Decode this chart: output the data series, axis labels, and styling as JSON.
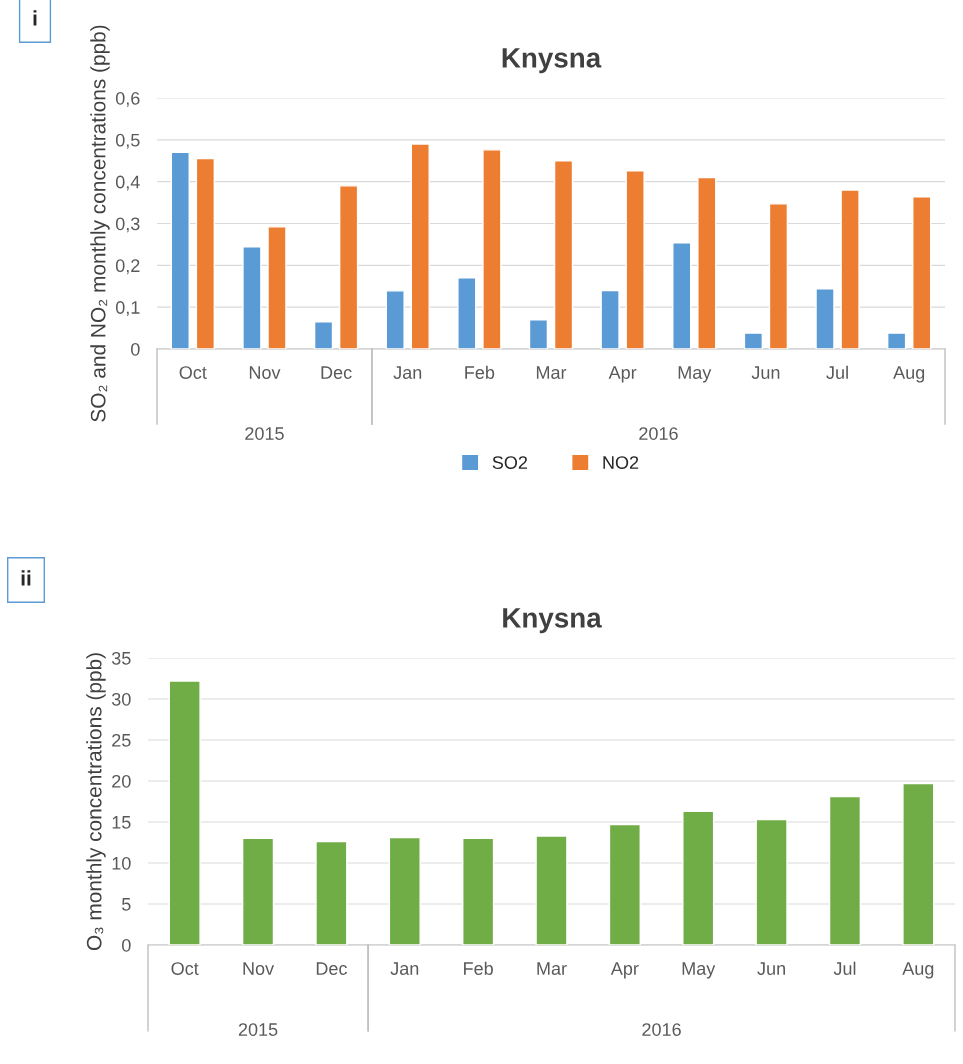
{
  "chart_data": [
    {
      "type": "bar",
      "title": "Knysna",
      "ylabel": "SO₂ and NO₂ monthly concentrations (ppb)",
      "categories": [
        "Oct",
        "Nov",
        "Dec",
        "Jan",
        "Feb",
        "Mar",
        "Apr",
        "May",
        "Jun",
        "Jul",
        "Aug"
      ],
      "series": [
        {
          "name": "SO2",
          "color": "#5b9bd5",
          "values": [
            0.47,
            0.244,
            0.065,
            0.139,
            0.17,
            0.07,
            0.14,
            0.254,
            0.038,
            0.144,
            0.038
          ]
        },
        {
          "name": "NO2",
          "color": "#ed7d31",
          "values": [
            0.455,
            0.292,
            0.39,
            0.49,
            0.476,
            0.45,
            0.426,
            0.41,
            0.347,
            0.38,
            0.364
          ]
        }
      ],
      "ylim": [
        0,
        0.6
      ],
      "yticks": [
        0,
        {
          "value": 0.1,
          "label": "0,1"
        },
        {
          "value": 0.2,
          "label": "0,2"
        },
        {
          "value": 0.3,
          "label": "0,3"
        },
        {
          "value": 0.4,
          "label": "0,4"
        },
        {
          "value": 0.5,
          "label": "0,5"
        },
        {
          "value": 0.6,
          "label": "0,6"
        }
      ],
      "grid": "y",
      "legend": "bottom",
      "annotations": [
        "i",
        "2015",
        "2016"
      ]
    },
    {
      "type": "bar",
      "title": "Knysna",
      "ylabel": "O₃ monthly concentrations (ppb)",
      "categories": [
        "Oct",
        "Nov",
        "Dec",
        "Jan",
        "Feb",
        "Mar",
        "Apr",
        "May",
        "Jun",
        "Jul",
        "Aug"
      ],
      "series": [
        {
          "color": "#70ad47",
          "values": [
            32.2,
            13.0,
            12.6,
            13.1,
            13.0,
            13.3,
            14.7,
            16.3,
            15.3,
            18.1,
            19.7
          ]
        }
      ],
      "ylim": [
        0,
        35
      ],
      "yticks": [
        0,
        5,
        10,
        15,
        20,
        25,
        30,
        35
      ],
      "grid": "y",
      "annotations": [
        "ii",
        "2015",
        "2016"
      ]
    }
  ]
}
